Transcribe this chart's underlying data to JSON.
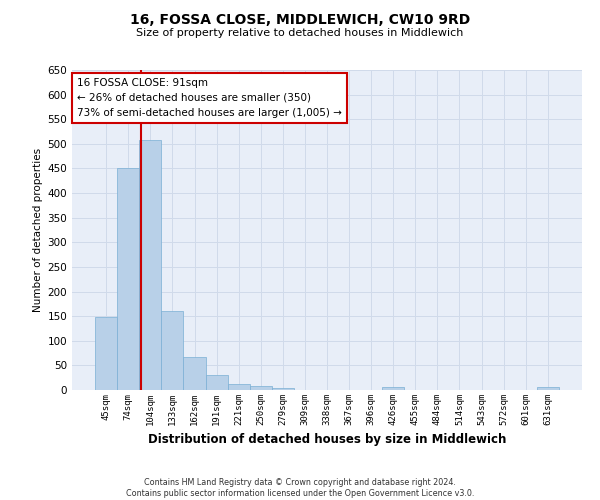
{
  "title": "16, FOSSA CLOSE, MIDDLEWICH, CW10 9RD",
  "subtitle": "Size of property relative to detached houses in Middlewich",
  "xlabel": "Distribution of detached houses by size in Middlewich",
  "ylabel": "Number of detached properties",
  "bar_color": "#b8d0e8",
  "bar_edge_color": "#7aafd4",
  "categories": [
    "45sqm",
    "74sqm",
    "104sqm",
    "133sqm",
    "162sqm",
    "191sqm",
    "221sqm",
    "250sqm",
    "279sqm",
    "309sqm",
    "338sqm",
    "367sqm",
    "396sqm",
    "426sqm",
    "455sqm",
    "484sqm",
    "514sqm",
    "543sqm",
    "572sqm",
    "601sqm",
    "631sqm"
  ],
  "values": [
    148,
    450,
    508,
    160,
    68,
    30,
    13,
    9,
    5,
    0,
    0,
    0,
    0,
    6,
    0,
    0,
    0,
    0,
    0,
    0,
    6
  ],
  "ylim": [
    0,
    650
  ],
  "yticks": [
    0,
    50,
    100,
    150,
    200,
    250,
    300,
    350,
    400,
    450,
    500,
    550,
    600,
    650
  ],
  "annotation_line1": "16 FOSSA CLOSE: 91sqm",
  "annotation_line2": "← 26% of detached houses are smaller (350)",
  "annotation_line3": "73% of semi-detached houses are larger (1,005) →",
  "annotation_box_color": "#ffffff",
  "annotation_box_edge_color": "#cc0000",
  "red_line_color": "#cc0000",
  "grid_color": "#d0daea",
  "background_color": "#e8eef8",
  "footer_line1": "Contains HM Land Registry data © Crown copyright and database right 2024.",
  "footer_line2": "Contains public sector information licensed under the Open Government Licence v3.0."
}
